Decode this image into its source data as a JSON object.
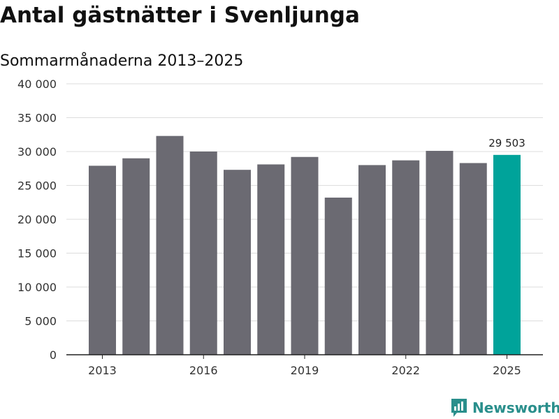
{
  "title": "Antal gästnätter i Svenljunga",
  "subtitle": "Sommarmånaderna 2013–2025",
  "brand": {
    "name": "Newsworthy",
    "icon": "newsworthy-logo-icon",
    "color": "#2a8f8c"
  },
  "colors": {
    "bar": "#6b6a72",
    "highlight": "#00a39a",
    "grid": "#dddddd",
    "axis": "#222222"
  },
  "chart_data": {
    "type": "bar",
    "categories": [
      "2013",
      "2014",
      "2015",
      "2016",
      "2017",
      "2018",
      "2019",
      "2020",
      "2021",
      "2022",
      "2023",
      "2024",
      "2025"
    ],
    "values": [
      27900,
      29000,
      32300,
      30000,
      27300,
      28100,
      29200,
      23200,
      28000,
      28700,
      30100,
      28300,
      29503
    ],
    "x_tick_labels": [
      "2013",
      "",
      "",
      "2016",
      "",
      "",
      "2019",
      "",
      "",
      "2022",
      "",
      "",
      "2025"
    ],
    "y_ticks": [
      0,
      5000,
      10000,
      15000,
      20000,
      25000,
      30000,
      35000,
      40000
    ],
    "y_tick_labels": [
      "0",
      "5 000",
      "10 000",
      "15 000",
      "20 000",
      "25 000",
      "30 000",
      "35 000",
      "40 000"
    ],
    "ylim": [
      0,
      40000
    ],
    "highlight_index": 12,
    "data_labels": [
      {
        "index": 12,
        "text": "29 503"
      }
    ],
    "grid": true,
    "legend": "none"
  }
}
